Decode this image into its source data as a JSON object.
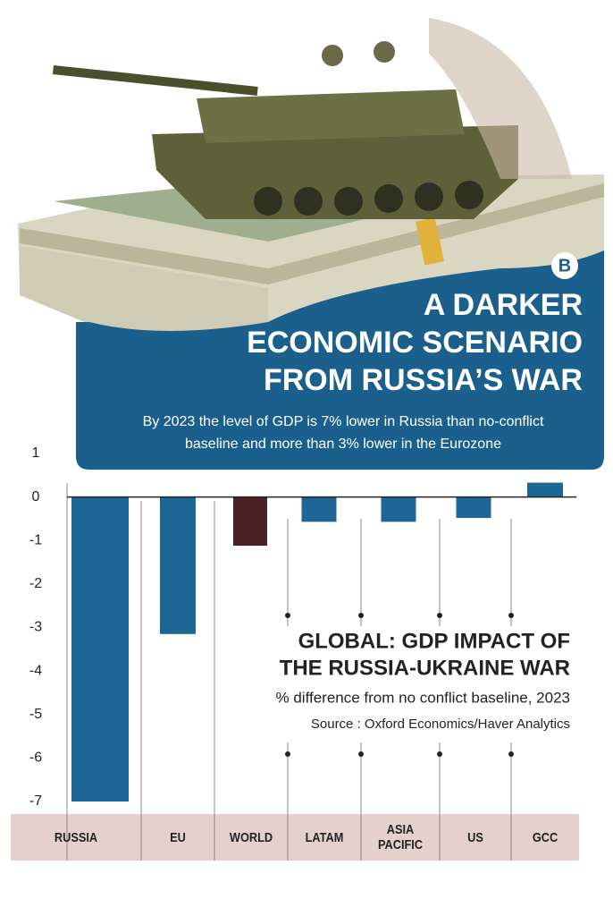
{
  "logo": "B",
  "header": {
    "title": [
      "A DARKER",
      "ECONOMIC SCENARIO",
      "FROM RUSSIA’S WAR"
    ],
    "subtitle": [
      "By 2023 the level of GDP is 7% lower in Russia than no-conflict",
      "baseline and more than 3% lower in the Eurozone"
    ]
  },
  "chart_data": {
    "type": "bar",
    "title": [
      "GLOBAL: GDP IMPACT OF",
      "THE RUSSIA-UKRAINE WAR"
    ],
    "subtitle": "% difference from no conflict baseline, 2023",
    "source": "Source : Oxford Economics/Haver Analytics",
    "categories": [
      "RUSSIA",
      "EU",
      "WORLD",
      "LATAM",
      "ASIA PACIFIC",
      "US",
      "GCC"
    ],
    "values": [
      -7,
      -3.15,
      -1.12,
      -0.57,
      -0.57,
      -0.48,
      0.33
    ],
    "colors": [
      "#1d6696",
      "#1d6696",
      "#4b2024",
      "#1d6696",
      "#1d6696",
      "#1d6696",
      "#1d6696"
    ],
    "ylim": [
      -7,
      1
    ],
    "yticks": [
      1,
      0,
      -1,
      -2,
      -3,
      -4,
      -5,
      -6,
      -7
    ],
    "grid": false
  }
}
